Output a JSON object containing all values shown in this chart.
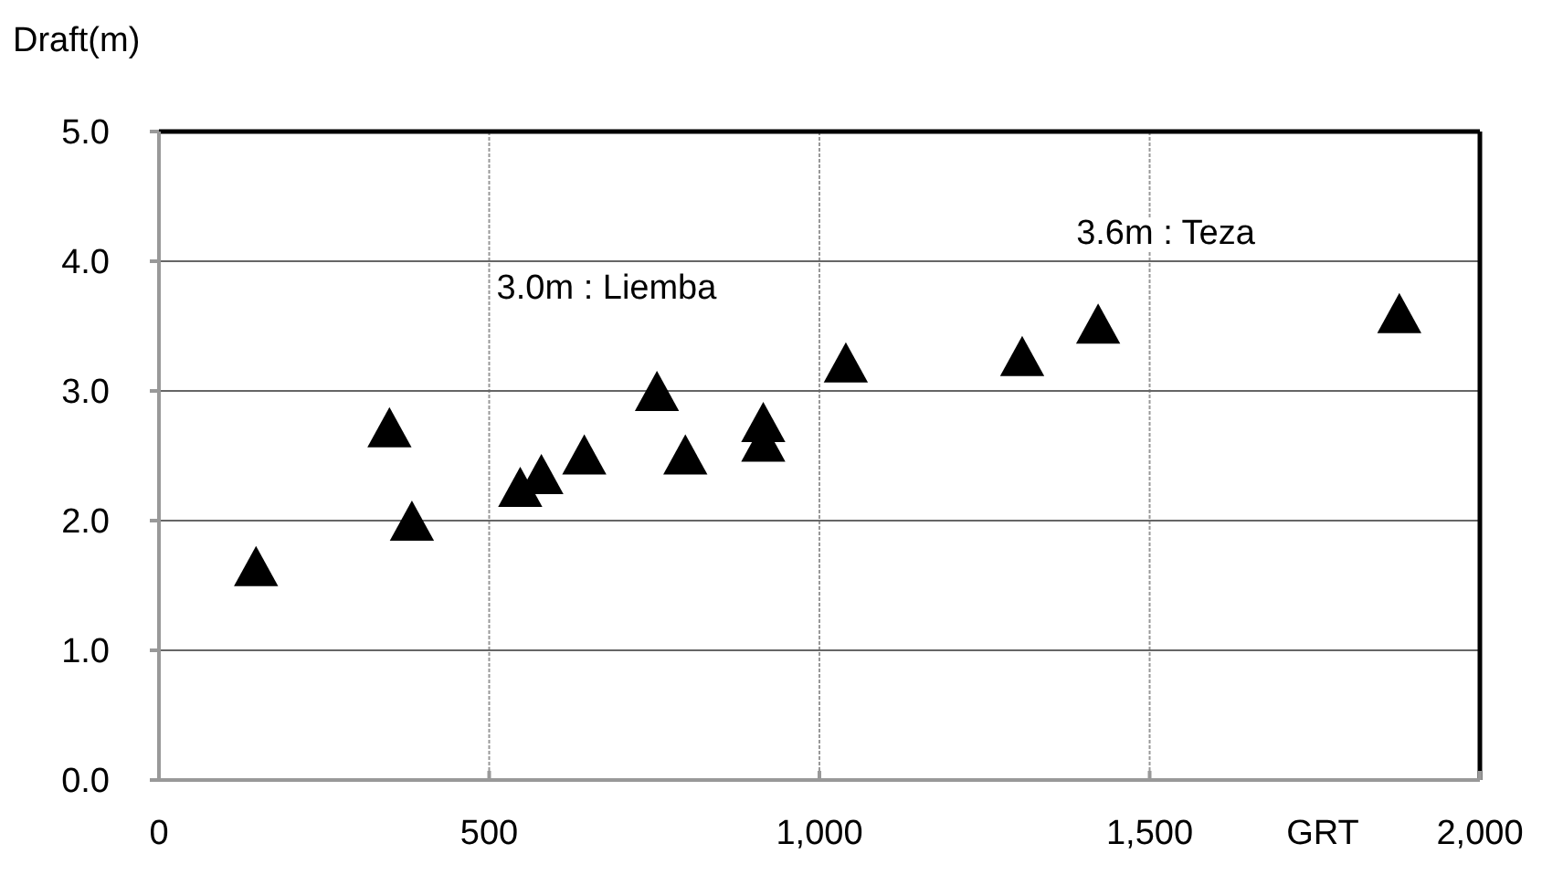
{
  "chart_data": {
    "type": "scatter",
    "xlabel": "GRT",
    "ylabel": "Draft(m)",
    "x": [
      147,
      349,
      383,
      547,
      579,
      644,
      754,
      797,
      915,
      915,
      1040,
      1307,
      1422,
      1878
    ],
    "values": [
      1.65,
      2.72,
      2.0,
      2.26,
      2.36,
      2.51,
      3.0,
      2.51,
      2.61,
      2.76,
      3.22,
      3.27,
      3.52,
      3.6
    ],
    "color": "#000000",
    "marker": "triangle",
    "grid": true,
    "xlim": [
      0,
      2000
    ],
    "xticks": [
      0,
      500,
      {
        "value": 1000,
        "label": "1,000"
      },
      {
        "value": 1500,
        "label": "1,500"
      },
      {
        "value": 2000,
        "label": "2,000"
      }
    ],
    "ylim": [
      0,
      5
    ],
    "yticks": [
      {
        "value": 0,
        "label": "0.0"
      },
      {
        "value": 1,
        "label": "1.0"
      },
      {
        "value": 2,
        "label": "2.0"
      },
      {
        "value": 3,
        "label": "3.0"
      },
      {
        "value": 4,
        "label": "4.0"
      },
      {
        "value": 5,
        "label": "5.0"
      }
    ],
    "annotations": [
      "3.0m : Liemba",
      "3.6m : Teza"
    ]
  }
}
